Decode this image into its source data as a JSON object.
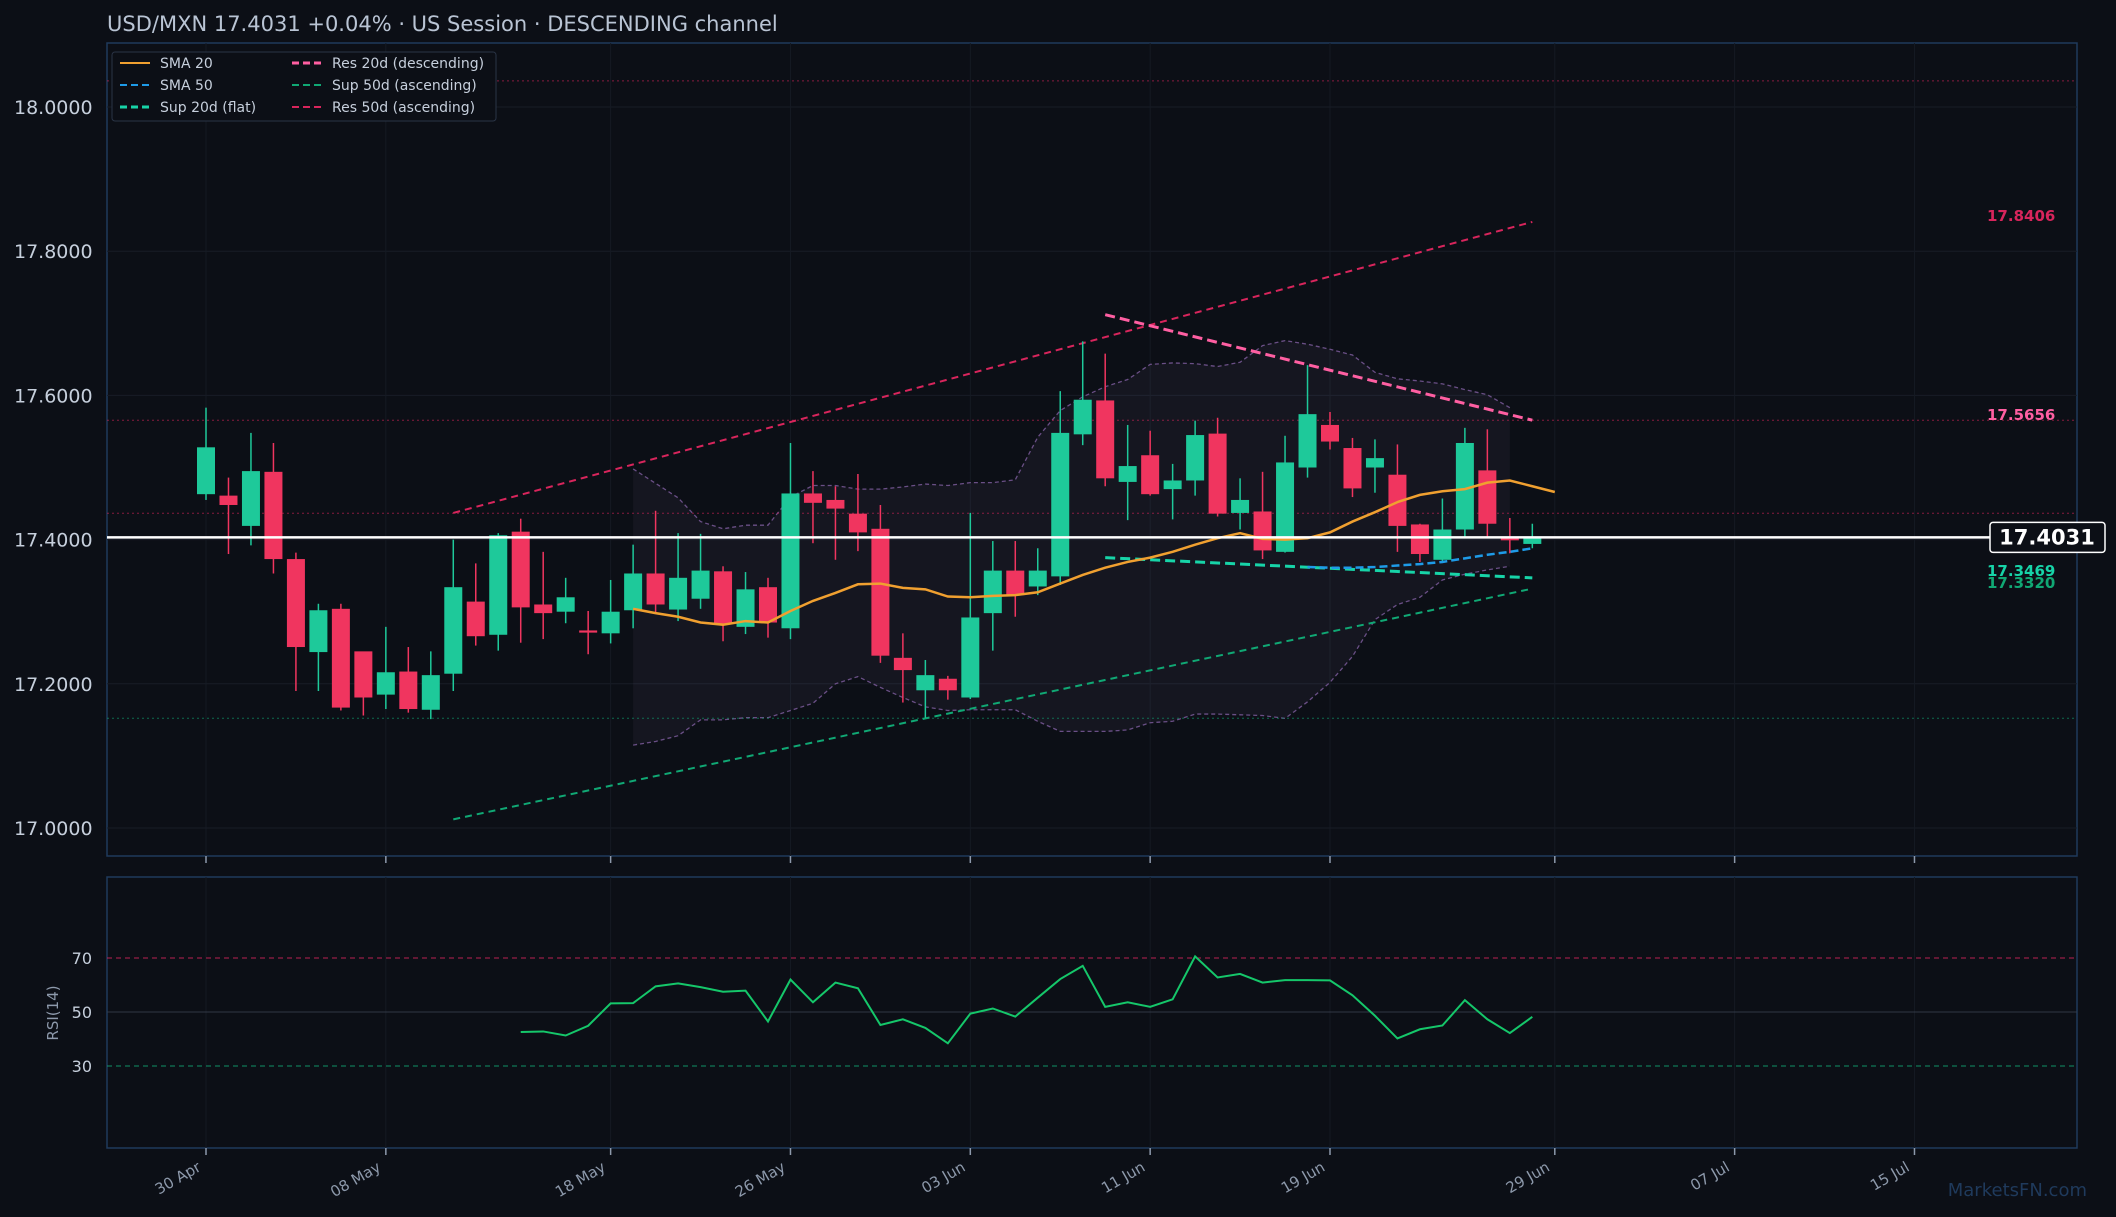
{
  "header": {
    "title": "USD/MXN   17.4031   +0.04%  ·  US Session  ·  DESCENDING channel",
    "watermark": "MarketsFN.com"
  },
  "colors": {
    "background": "#0c0f16",
    "panel_border": "#1f3a5c",
    "up_candle": "#1ec99a",
    "down_candle": "#f0355f",
    "sma20": "#f0a030",
    "sma50": "#1e9be8",
    "sup20": "#17d4a8",
    "res20": "#ff5fa2",
    "sup50": "#10a874",
    "res50": "#d8255c",
    "rsi_line": "#15c76a",
    "last_price": "#ffffff"
  },
  "chart_data": [
    {
      "type": "candlestick",
      "title": "USD/MXN   17.4031   +0.04%  ·  US Session  ·  DESCENDING channel",
      "ylim": [
        16.97,
        18.07
      ],
      "y_ticks": [
        17.0,
        17.2,
        17.4,
        17.6,
        17.8,
        18.0
      ],
      "y_tick_labels": [
        "17.0000",
        "17.2000",
        "17.4000",
        "17.6000",
        "17.8000",
        "18.0000"
      ],
      "x_ticks": [
        {
          "date": "2024-04-30",
          "label": "30 Apr"
        },
        {
          "date": "2024-05-08",
          "label": "08 May"
        },
        {
          "date": "2024-05-18",
          "label": "18 May"
        },
        {
          "date": "2024-05-26",
          "label": "26 May"
        },
        {
          "date": "2024-06-03",
          "label": "03 Jun"
        },
        {
          "date": "2024-06-11",
          "label": "11 Jun"
        },
        {
          "date": "2024-06-19",
          "label": "19 Jun"
        },
        {
          "date": "2024-06-29",
          "label": "29 Jun"
        },
        {
          "date": "2024-07-07",
          "label": "07 Jul"
        },
        {
          "date": "2024-07-15",
          "label": "15 Jul"
        }
      ],
      "grid": true,
      "legend_position": "top-left",
      "legend": [
        {
          "label": "SMA 20",
          "color": "#f0a030",
          "dash": "solid"
        },
        {
          "label": "SMA 50",
          "color": "#1e9be8",
          "dash": "dashed"
        },
        {
          "label": "Sup 20d (flat)",
          "color": "#17d4a8",
          "dash": "dashed"
        },
        {
          "label": "Res 20d (descending)",
          "color": "#ff5fa2",
          "dash": "dashed"
        },
        {
          "label": "Sup 50d (ascending)",
          "color": "#10a874",
          "dash": "dashed"
        },
        {
          "label": "Res 50d (ascending)",
          "color": "#d8255c",
          "dash": "dashed"
        }
      ],
      "candles": [
        {
          "date": "2024-04-30",
          "o": 17.463,
          "h": 17.583,
          "l": 17.455,
          "c": 17.528
        },
        {
          "date": "2024-05-01",
          "o": 17.461,
          "h": 17.486,
          "l": 17.38,
          "c": 17.448
        },
        {
          "date": "2024-05-02",
          "o": 17.419,
          "h": 17.548,
          "l": 17.392,
          "c": 17.495
        },
        {
          "date": "2024-05-03",
          "o": 17.494,
          "h": 17.534,
          "l": 17.353,
          "c": 17.373
        },
        {
          "date": "2024-05-04",
          "o": 17.373,
          "h": 17.382,
          "l": 17.19,
          "c": 17.251
        },
        {
          "date": "2024-05-05",
          "o": 17.244,
          "h": 17.311,
          "l": 17.19,
          "c": 17.302
        },
        {
          "date": "2024-05-06",
          "o": 17.304,
          "h": 17.311,
          "l": 17.163,
          "c": 17.167
        },
        {
          "date": "2024-05-07",
          "o": 17.245,
          "h": 17.244,
          "l": 17.156,
          "c": 17.181
        },
        {
          "date": "2024-05-08",
          "o": 17.185,
          "h": 17.279,
          "l": 17.165,
          "c": 17.216
        },
        {
          "date": "2024-05-09",
          "o": 17.217,
          "h": 17.251,
          "l": 17.16,
          "c": 17.165
        },
        {
          "date": "2024-05-10",
          "o": 17.164,
          "h": 17.245,
          "l": 17.151,
          "c": 17.212
        },
        {
          "date": "2024-05-11",
          "o": 17.214,
          "h": 17.4,
          "l": 17.19,
          "c": 17.334
        },
        {
          "date": "2024-05-12",
          "o": 17.314,
          "h": 17.367,
          "l": 17.253,
          "c": 17.266
        },
        {
          "date": "2024-05-13",
          "o": 17.268,
          "h": 17.409,
          "l": 17.246,
          "c": 17.406
        },
        {
          "date": "2024-05-14",
          "o": 17.411,
          "h": 17.429,
          "l": 17.257,
          "c": 17.306
        },
        {
          "date": "2024-05-15",
          "o": 17.31,
          "h": 17.383,
          "l": 17.262,
          "c": 17.298
        },
        {
          "date": "2024-05-16",
          "o": 17.3,
          "h": 17.347,
          "l": 17.284,
          "c": 17.32
        },
        {
          "date": "2024-05-17",
          "o": 17.274,
          "h": 17.301,
          "l": 17.241,
          "c": 17.271
        },
        {
          "date": "2024-05-18",
          "o": 17.27,
          "h": 17.344,
          "l": 17.256,
          "c": 17.3
        },
        {
          "date": "2024-05-19",
          "o": 17.302,
          "h": 17.393,
          "l": 17.277,
          "c": 17.353
        },
        {
          "date": "2024-05-20",
          "o": 17.353,
          "h": 17.44,
          "l": 17.299,
          "c": 17.31
        },
        {
          "date": "2024-05-21",
          "o": 17.303,
          "h": 17.409,
          "l": 17.287,
          "c": 17.347
        },
        {
          "date": "2024-05-22",
          "o": 17.318,
          "h": 17.408,
          "l": 17.304,
          "c": 17.357
        },
        {
          "date": "2024-05-23",
          "o": 17.356,
          "h": 17.363,
          "l": 17.259,
          "c": 17.283
        },
        {
          "date": "2024-05-24",
          "o": 17.279,
          "h": 17.355,
          "l": 17.269,
          "c": 17.331
        },
        {
          "date": "2024-05-25",
          "o": 17.334,
          "h": 17.347,
          "l": 17.264,
          "c": 17.285
        },
        {
          "date": "2024-05-26",
          "o": 17.277,
          "h": 17.534,
          "l": 17.262,
          "c": 17.464
        },
        {
          "date": "2024-05-27",
          "o": 17.464,
          "h": 17.495,
          "l": 17.395,
          "c": 17.451
        },
        {
          "date": "2024-05-28",
          "o": 17.455,
          "h": 17.474,
          "l": 17.372,
          "c": 17.443
        },
        {
          "date": "2024-05-29",
          "o": 17.436,
          "h": 17.491,
          "l": 17.384,
          "c": 17.41
        },
        {
          "date": "2024-05-30",
          "o": 17.415,
          "h": 17.448,
          "l": 17.229,
          "c": 17.239
        },
        {
          "date": "2024-05-31",
          "o": 17.236,
          "h": 17.27,
          "l": 17.174,
          "c": 17.219
        },
        {
          "date": "2024-06-01",
          "o": 17.191,
          "h": 17.233,
          "l": 17.153,
          "c": 17.212
        },
        {
          "date": "2024-06-02",
          "o": 17.207,
          "h": 17.211,
          "l": 17.178,
          "c": 17.191
        },
        {
          "date": "2024-06-03",
          "o": 17.181,
          "h": 17.437,
          "l": 17.179,
          "c": 17.292
        },
        {
          "date": "2024-06-04",
          "o": 17.298,
          "h": 17.398,
          "l": 17.246,
          "c": 17.357
        },
        {
          "date": "2024-06-05",
          "o": 17.357,
          "h": 17.398,
          "l": 17.293,
          "c": 17.323
        },
        {
          "date": "2024-06-06",
          "o": 17.335,
          "h": 17.388,
          "l": 17.323,
          "c": 17.357
        },
        {
          "date": "2024-06-07",
          "o": 17.349,
          "h": 17.606,
          "l": 17.337,
          "c": 17.548
        },
        {
          "date": "2024-06-08",
          "o": 17.546,
          "h": 17.675,
          "l": 17.531,
          "c": 17.594
        },
        {
          "date": "2024-06-09",
          "o": 17.593,
          "h": 17.658,
          "l": 17.474,
          "c": 17.485
        },
        {
          "date": "2024-06-10",
          "o": 17.48,
          "h": 17.559,
          "l": 17.427,
          "c": 17.502
        },
        {
          "date": "2024-06-11",
          "o": 17.517,
          "h": 17.551,
          "l": 17.461,
          "c": 17.463
        },
        {
          "date": "2024-06-12",
          "o": 17.47,
          "h": 17.505,
          "l": 17.428,
          "c": 17.482
        },
        {
          "date": "2024-06-13",
          "o": 17.482,
          "h": 17.565,
          "l": 17.461,
          "c": 17.545
        },
        {
          "date": "2024-06-14",
          "o": 17.547,
          "h": 17.569,
          "l": 17.432,
          "c": 17.436
        },
        {
          "date": "2024-06-15",
          "o": 17.437,
          "h": 17.485,
          "l": 17.414,
          "c": 17.455
        },
        {
          "date": "2024-06-16",
          "o": 17.439,
          "h": 17.494,
          "l": 17.373,
          "c": 17.385
        },
        {
          "date": "2024-06-17",
          "o": 17.383,
          "h": 17.544,
          "l": 17.382,
          "c": 17.507
        },
        {
          "date": "2024-06-18",
          "o": 17.5,
          "h": 17.642,
          "l": 17.486,
          "c": 17.574
        },
        {
          "date": "2024-06-19",
          "o": 17.559,
          "h": 17.577,
          "l": 17.525,
          "c": 17.536
        },
        {
          "date": "2024-06-20",
          "o": 17.527,
          "h": 17.541,
          "l": 17.459,
          "c": 17.471
        },
        {
          "date": "2024-06-21",
          "o": 17.5,
          "h": 17.539,
          "l": 17.465,
          "c": 17.513
        },
        {
          "date": "2024-06-22",
          "o": 17.49,
          "h": 17.532,
          "l": 17.383,
          "c": 17.419
        },
        {
          "date": "2024-06-23",
          "o": 17.421,
          "h": 17.422,
          "l": 17.369,
          "c": 17.38
        },
        {
          "date": "2024-06-24",
          "o": 17.372,
          "h": 17.457,
          "l": 17.368,
          "c": 17.414
        },
        {
          "date": "2024-06-25",
          "o": 17.414,
          "h": 17.555,
          "l": 17.402,
          "c": 17.534
        },
        {
          "date": "2024-06-26",
          "o": 17.496,
          "h": 17.553,
          "l": 17.403,
          "c": 17.422
        },
        {
          "date": "2024-06-27",
          "o": 17.402,
          "h": 17.43,
          "l": 17.381,
          "c": 17.399
        },
        {
          "date": "2024-06-28",
          "o": 17.394,
          "h": 17.422,
          "l": 17.388,
          "c": 17.403
        }
      ],
      "sma20": {
        "start_date": "2024-05-19",
        "values": [
          17.304,
          17.298,
          17.293,
          17.285,
          17.282,
          17.287,
          17.285,
          17.301,
          17.315,
          17.326,
          17.338,
          17.339,
          17.333,
          17.331,
          17.321,
          17.32,
          17.322,
          17.323,
          17.327,
          17.339,
          17.351,
          17.361,
          17.369,
          17.375,
          17.383,
          17.393,
          17.402,
          17.409,
          17.401,
          17.4,
          17.402,
          17.41,
          17.425,
          17.438,
          17.452,
          17.462,
          17.467,
          17.47,
          17.479,
          17.482,
          17.474,
          17.466
        ]
      },
      "sma50": {
        "start_date": "2024-06-18",
        "values": [
          17.362,
          17.361,
          17.361,
          17.362,
          17.364,
          17.366,
          17.369,
          17.374,
          17.379,
          17.383,
          17.388
        ]
      },
      "bollinger_upper": {
        "start_date": "2024-05-19",
        "values": [
          17.498,
          17.478,
          17.458,
          17.425,
          17.415,
          17.42,
          17.42,
          17.459,
          17.475,
          17.475,
          17.47,
          17.47,
          17.473,
          17.477,
          17.475,
          17.479,
          17.479,
          17.483,
          17.542,
          17.579,
          17.598,
          17.612,
          17.622,
          17.643,
          17.645,
          17.644,
          17.64,
          17.646,
          17.669,
          17.676,
          17.671,
          17.664,
          17.656,
          17.632,
          17.623,
          17.62,
          17.616,
          17.608,
          17.601,
          17.583
        ]
      },
      "bollinger_lower": {
        "start_date": "2024-05-19",
        "values": [
          17.115,
          17.12,
          17.128,
          17.15,
          17.15,
          17.153,
          17.153,
          17.163,
          17.173,
          17.2,
          17.21,
          17.195,
          17.181,
          17.168,
          17.163,
          17.164,
          17.164,
          17.164,
          17.148,
          17.134,
          17.134,
          17.134,
          17.136,
          17.146,
          17.148,
          17.158,
          17.158,
          17.157,
          17.156,
          17.152,
          17.175,
          17.202,
          17.238,
          17.289,
          17.31,
          17.32,
          17.344,
          17.352,
          17.358,
          17.363
        ]
      },
      "trendlines": [
        {
          "name": "Res 50d (ascending)",
          "from": {
            "date": "2024-05-11",
            "value": 17.437
          },
          "to": {
            "date": "2024-06-28",
            "value": 17.8406
          }
        },
        {
          "name": "Sup 50d (ascending)",
          "from": {
            "date": "2024-05-11",
            "value": 17.012
          },
          "to": {
            "date": "2024-06-28",
            "value": 17.332
          }
        },
        {
          "name": "Res 20d (descending)",
          "from": {
            "date": "2024-06-09",
            "value": 17.712
          },
          "to": {
            "date": "2024-06-28",
            "value": 17.5656
          }
        },
        {
          "name": "Sup 20d (flat)",
          "from": {
            "date": "2024-06-09",
            "value": 17.375
          },
          "to": {
            "date": "2024-06-28",
            "value": 17.3469
          }
        }
      ],
      "horizontal_levels": [
        {
          "value": 18.0362,
          "color": "#d8255c"
        },
        {
          "value": 17.5656,
          "color": "#d8255c"
        },
        {
          "value": 17.4366,
          "color": "#d8255c"
        },
        {
          "value": 17.1523,
          "color": "#10a874"
        }
      ],
      "level_labels": [
        {
          "text": "17.8406",
          "value": 17.8406,
          "color": "#d8255c"
        },
        {
          "text": "17.5656",
          "value": 17.5656,
          "color": "#ff5fa2"
        },
        {
          "text": "17.3469",
          "value": 17.3469,
          "color": "#17d4a8"
        },
        {
          "text": "17.3320",
          "value": 17.332,
          "color": "#10a874"
        }
      ],
      "last_price": {
        "value": 17.4031,
        "label": "17.4031"
      }
    },
    {
      "type": "line",
      "name": "RSI",
      "ylabel": "RSI(14)",
      "ylim": [
        -20,
        120
      ],
      "y_ticks": [
        30,
        50,
        70
      ],
      "reference_lines": [
        {
          "value": 70,
          "color": "#d8255c"
        },
        {
          "value": 50,
          "color": "#3a4150"
        },
        {
          "value": 30,
          "color": "#10a874"
        }
      ],
      "start_date": "2024-05-14",
      "values": [
        42.6,
        42.8,
        41.3,
        44.9,
        53.2,
        53.3,
        59.5,
        60.6,
        59.2,
        57.5,
        57.9,
        46.5,
        62.0,
        53.6,
        60.9,
        58.8,
        45.2,
        47.3,
        44.1,
        38.4,
        49.4,
        51.3,
        48.3,
        55.3,
        62.2,
        67.1,
        51.9,
        53.6,
        51.9,
        54.7,
        70.6,
        62.8,
        64.1,
        60.9,
        61.8,
        61.8,
        61.7,
        56.2,
        48.6,
        40.2,
        43.6,
        45.0,
        54.4,
        47.3,
        42.2,
        48.2
      ]
    }
  ]
}
